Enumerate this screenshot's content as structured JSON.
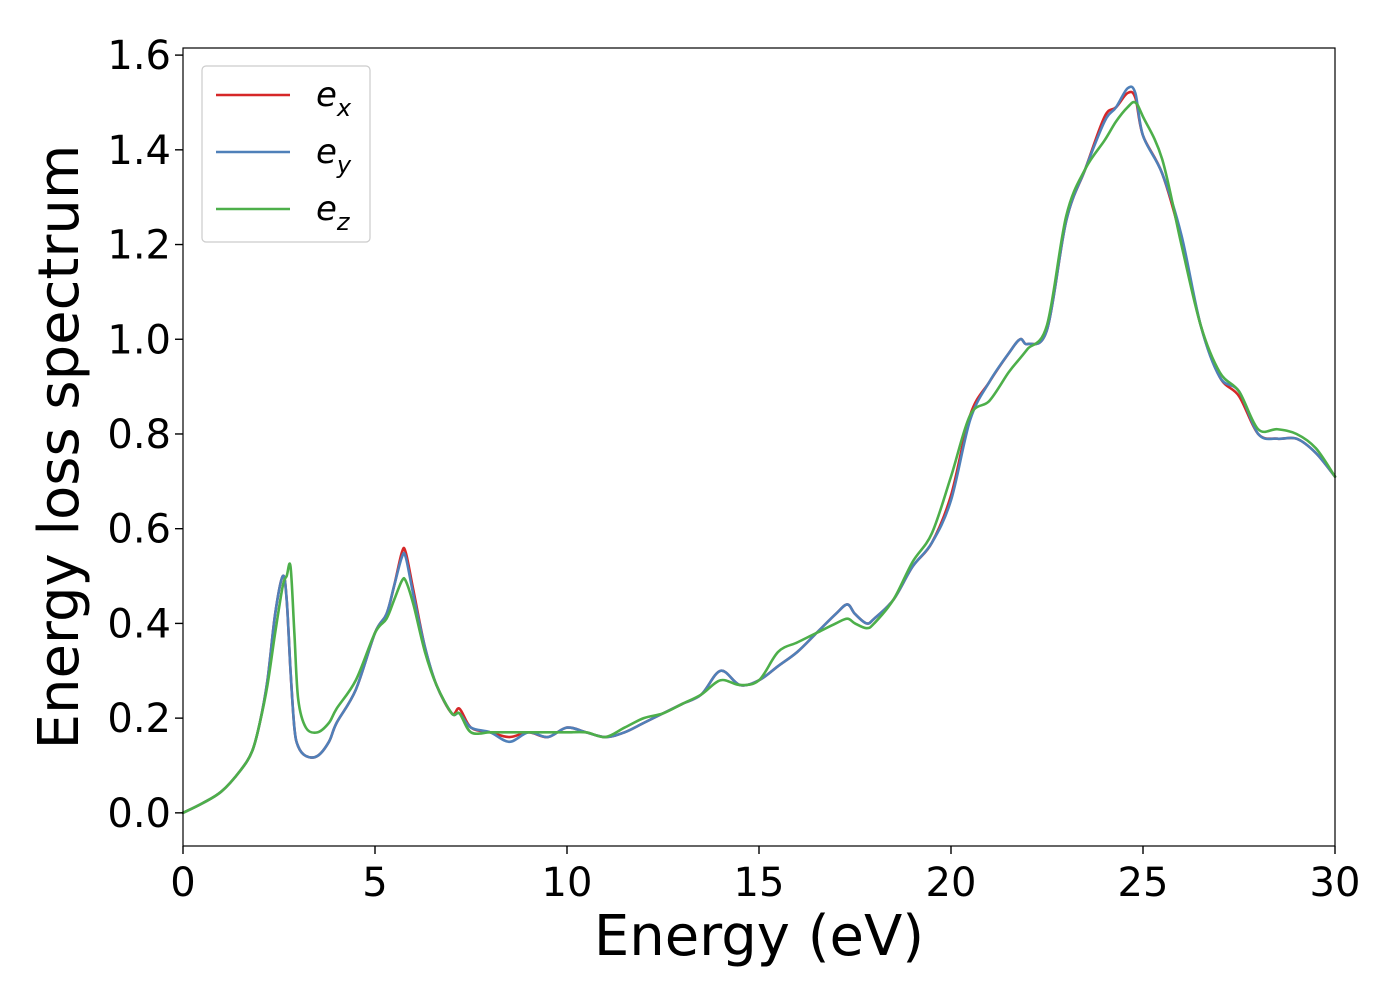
{
  "chart_data": {
    "type": "line",
    "title": "",
    "xlabel": "Energy (eV)",
    "ylabel": "Energy loss spectrum",
    "xlim": [
      0,
      30
    ],
    "ylim": [
      -0.07,
      1.615
    ],
    "xticks": [
      0,
      5,
      10,
      15,
      20,
      25,
      30
    ],
    "yticks": [
      0.0,
      0.2,
      0.4,
      0.6,
      0.8,
      1.0,
      1.2,
      1.4,
      1.6
    ],
    "xtick_labels": [
      "0",
      "5",
      "10",
      "15",
      "20",
      "25",
      "30"
    ],
    "ytick_labels": [
      "0.0",
      "0.2",
      "0.4",
      "0.6",
      "0.8",
      "1.0",
      "1.2",
      "1.4",
      "1.6"
    ],
    "grid": false,
    "legend": "top-left",
    "series": [
      {
        "name": "e",
        "subscript": "x",
        "color": "#d62728",
        "x": [
          0,
          0.5,
          1.0,
          1.5,
          1.8,
          2.0,
          2.2,
          2.4,
          2.6,
          2.7,
          2.8,
          2.9,
          3.0,
          3.2,
          3.5,
          3.8,
          4.0,
          4.5,
          5.0,
          5.3,
          5.5,
          5.7,
          5.8,
          6.0,
          6.3,
          6.6,
          7.0,
          7.2,
          7.5,
          8.0,
          8.5,
          9.0,
          9.5,
          10.0,
          10.5,
          11.0,
          11.5,
          12.0,
          12.5,
          13.0,
          13.5,
          14.0,
          14.5,
          15.0,
          15.5,
          16.0,
          16.5,
          17.0,
          17.3,
          17.5,
          17.8,
          18.0,
          18.5,
          19.0,
          19.5,
          20.0,
          20.5,
          21.0,
          21.5,
          21.8,
          22.0,
          22.5,
          23.0,
          23.5,
          24.0,
          24.3,
          24.6,
          24.8,
          25.0,
          25.5,
          26.0,
          26.5,
          27.0,
          27.5,
          28.0,
          28.5,
          29.0,
          29.5,
          30.0
        ],
        "y": [
          0.0,
          0.02,
          0.045,
          0.09,
          0.13,
          0.19,
          0.28,
          0.42,
          0.5,
          0.45,
          0.3,
          0.18,
          0.14,
          0.12,
          0.12,
          0.15,
          0.19,
          0.26,
          0.38,
          0.42,
          0.48,
          0.55,
          0.55,
          0.47,
          0.35,
          0.27,
          0.21,
          0.22,
          0.18,
          0.17,
          0.16,
          0.17,
          0.16,
          0.18,
          0.17,
          0.16,
          0.17,
          0.19,
          0.21,
          0.23,
          0.25,
          0.3,
          0.27,
          0.28,
          0.31,
          0.34,
          0.38,
          0.42,
          0.44,
          0.42,
          0.4,
          0.41,
          0.45,
          0.52,
          0.57,
          0.67,
          0.84,
          0.91,
          0.97,
          1.0,
          0.99,
          1.02,
          1.25,
          1.36,
          1.47,
          1.49,
          1.52,
          1.51,
          1.43,
          1.35,
          1.21,
          1.03,
          0.92,
          0.88,
          0.8,
          0.79,
          0.79,
          0.76,
          0.71
        ]
      },
      {
        "name": "e",
        "subscript": "y",
        "color": "#4f80b9",
        "x": [
          0,
          0.5,
          1.0,
          1.5,
          1.8,
          2.0,
          2.2,
          2.4,
          2.6,
          2.7,
          2.8,
          2.9,
          3.0,
          3.2,
          3.5,
          3.8,
          4.0,
          4.5,
          5.0,
          5.3,
          5.5,
          5.7,
          5.8,
          6.0,
          6.3,
          6.6,
          7.0,
          7.2,
          7.5,
          8.0,
          8.5,
          9.0,
          9.5,
          10.0,
          10.5,
          11.0,
          11.5,
          12.0,
          12.5,
          13.0,
          13.5,
          14.0,
          14.5,
          15.0,
          15.5,
          16.0,
          16.5,
          17.0,
          17.3,
          17.5,
          17.8,
          18.0,
          18.5,
          19.0,
          19.5,
          20.0,
          20.5,
          21.0,
          21.5,
          21.8,
          22.0,
          22.5,
          23.0,
          23.5,
          24.0,
          24.3,
          24.6,
          24.8,
          25.0,
          25.5,
          26.0,
          26.5,
          27.0,
          27.5,
          28.0,
          28.5,
          29.0,
          29.5,
          30.0
        ],
        "y": [
          0.0,
          0.02,
          0.045,
          0.09,
          0.13,
          0.19,
          0.28,
          0.42,
          0.5,
          0.45,
          0.3,
          0.18,
          0.14,
          0.12,
          0.12,
          0.15,
          0.19,
          0.26,
          0.38,
          0.42,
          0.48,
          0.54,
          0.54,
          0.46,
          0.35,
          0.27,
          0.21,
          0.21,
          0.18,
          0.17,
          0.15,
          0.17,
          0.16,
          0.18,
          0.17,
          0.16,
          0.17,
          0.19,
          0.21,
          0.23,
          0.25,
          0.3,
          0.27,
          0.28,
          0.31,
          0.34,
          0.38,
          0.42,
          0.44,
          0.42,
          0.4,
          0.41,
          0.45,
          0.52,
          0.57,
          0.66,
          0.83,
          0.91,
          0.97,
          1.0,
          0.99,
          1.02,
          1.25,
          1.36,
          1.46,
          1.49,
          1.53,
          1.52,
          1.43,
          1.35,
          1.22,
          1.03,
          0.92,
          0.89,
          0.8,
          0.79,
          0.79,
          0.76,
          0.71
        ]
      },
      {
        "name": "e",
        "subscript": "z",
        "color": "#4daf4a",
        "x": [
          0,
          0.5,
          1.0,
          1.5,
          1.8,
          2.0,
          2.2,
          2.4,
          2.6,
          2.7,
          2.8,
          2.9,
          3.0,
          3.2,
          3.5,
          3.8,
          4.0,
          4.5,
          5.0,
          5.3,
          5.5,
          5.7,
          5.8,
          6.0,
          6.3,
          6.6,
          7.0,
          7.2,
          7.5,
          8.0,
          8.5,
          9.0,
          9.5,
          10.0,
          10.5,
          11.0,
          11.5,
          12.0,
          12.5,
          13.0,
          13.5,
          14.0,
          14.5,
          15.0,
          15.5,
          16.0,
          16.5,
          17.0,
          17.3,
          17.5,
          17.8,
          18.0,
          18.5,
          19.0,
          19.5,
          20.0,
          20.5,
          21.0,
          21.5,
          21.8,
          22.0,
          22.5,
          23.0,
          23.5,
          24.0,
          24.3,
          24.6,
          24.8,
          25.0,
          25.5,
          26.0,
          26.5,
          27.0,
          27.5,
          28.0,
          28.5,
          29.0,
          29.5,
          30.0
        ],
        "y": [
          0.0,
          0.02,
          0.045,
          0.09,
          0.13,
          0.19,
          0.27,
          0.38,
          0.48,
          0.5,
          0.52,
          0.38,
          0.24,
          0.18,
          0.17,
          0.19,
          0.22,
          0.28,
          0.38,
          0.41,
          0.45,
          0.49,
          0.49,
          0.44,
          0.34,
          0.27,
          0.21,
          0.21,
          0.17,
          0.17,
          0.17,
          0.17,
          0.17,
          0.17,
          0.17,
          0.16,
          0.18,
          0.2,
          0.21,
          0.23,
          0.25,
          0.28,
          0.27,
          0.28,
          0.34,
          0.36,
          0.38,
          0.4,
          0.41,
          0.4,
          0.39,
          0.4,
          0.45,
          0.53,
          0.59,
          0.71,
          0.84,
          0.87,
          0.93,
          0.96,
          0.98,
          1.03,
          1.26,
          1.36,
          1.42,
          1.46,
          1.49,
          1.5,
          1.47,
          1.38,
          1.2,
          1.03,
          0.93,
          0.89,
          0.81,
          0.81,
          0.8,
          0.77,
          0.71
        ]
      }
    ]
  }
}
